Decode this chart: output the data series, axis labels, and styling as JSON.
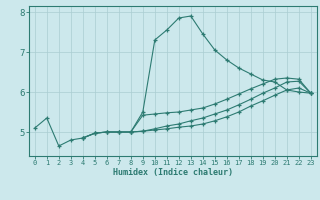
{
  "xlabel": "Humidex (Indice chaleur)",
  "line_color": "#2d7b72",
  "bg_color": "#cce8ec",
  "grid_color": "#aacdd2",
  "xlim": [
    -0.5,
    23.5
  ],
  "ylim": [
    4.4,
    8.15
  ],
  "xticks": [
    0,
    1,
    2,
    3,
    4,
    5,
    6,
    7,
    8,
    9,
    10,
    11,
    12,
    13,
    14,
    15,
    16,
    17,
    18,
    19,
    20,
    21,
    22,
    23
  ],
  "yticks": [
    5,
    6,
    7,
    8
  ],
  "series": [
    {
      "x": [
        0,
        1,
        2,
        3,
        4,
        5,
        6,
        7,
        8,
        9,
        10,
        11,
        12,
        13,
        14,
        15,
        16,
        17,
        18,
        19,
        20,
        21,
        22,
        23
      ],
      "y": [
        5.1,
        5.35,
        4.65,
        4.8,
        4.85,
        4.97,
        5.0,
        5.0,
        5.0,
        5.5,
        7.3,
        7.55,
        7.85,
        7.9,
        7.45,
        7.05,
        6.8,
        6.6,
        6.45,
        6.3,
        6.25,
        6.05,
        6.0,
        5.97
      ]
    },
    {
      "x": [
        4,
        5,
        6,
        7,
        8,
        9,
        10,
        11,
        12,
        13,
        14,
        15,
        16,
        17,
        18,
        19,
        20,
        21,
        22,
        23
      ],
      "y": [
        4.85,
        4.97,
        5.0,
        5.0,
        5.0,
        5.02,
        5.05,
        5.08,
        5.12,
        5.15,
        5.2,
        5.28,
        5.38,
        5.5,
        5.65,
        5.78,
        5.92,
        6.05,
        6.1,
        5.97
      ]
    },
    {
      "x": [
        4,
        5,
        6,
        7,
        8,
        9,
        10,
        11,
        12,
        13,
        14,
        15,
        16,
        17,
        18,
        19,
        20,
        21,
        22,
        23
      ],
      "y": [
        4.85,
        4.97,
        5.0,
        5.0,
        5.0,
        5.02,
        5.08,
        5.15,
        5.2,
        5.28,
        5.35,
        5.45,
        5.55,
        5.68,
        5.82,
        5.97,
        6.1,
        6.25,
        6.27,
        5.97
      ]
    },
    {
      "x": [
        8,
        9,
        10,
        11,
        12,
        13,
        14,
        15,
        16,
        17,
        18,
        19,
        20,
        21,
        22,
        23
      ],
      "y": [
        5.0,
        5.42,
        5.45,
        5.48,
        5.5,
        5.55,
        5.6,
        5.7,
        5.82,
        5.95,
        6.08,
        6.2,
        6.32,
        6.35,
        6.32,
        5.97
      ]
    }
  ]
}
